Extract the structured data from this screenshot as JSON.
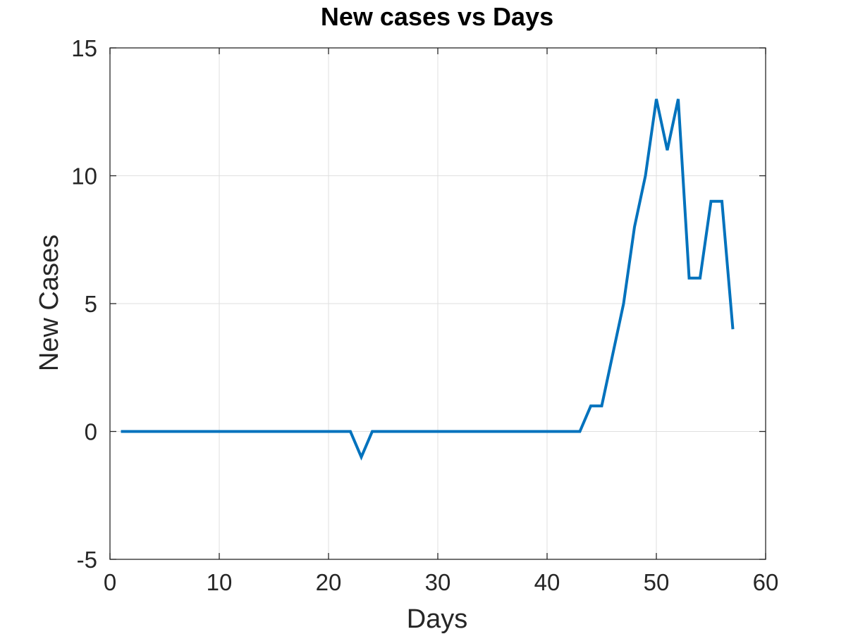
{
  "chart_data": {
    "type": "line",
    "title": "New cases vs Days",
    "xlabel": "Days",
    "ylabel": "New Cases",
    "xlim": [
      0,
      60
    ],
    "ylim": [
      -5,
      15
    ],
    "xticks": [
      0,
      10,
      20,
      30,
      40,
      50,
      60
    ],
    "yticks": [
      -5,
      0,
      5,
      10,
      15
    ],
    "xtick_labels": [
      "0",
      "10",
      "20",
      "30",
      "40",
      "50",
      "60"
    ],
    "ytick_labels": [
      "-5",
      "0",
      "5",
      "10",
      "15"
    ],
    "grid": true,
    "legend": "none",
    "series": [
      {
        "color": "#0072bd",
        "x": [
          1,
          2,
          3,
          4,
          5,
          6,
          7,
          8,
          9,
          10,
          11,
          12,
          13,
          14,
          15,
          16,
          17,
          18,
          19,
          20,
          21,
          22,
          23,
          24,
          25,
          26,
          27,
          28,
          29,
          30,
          31,
          32,
          33,
          34,
          35,
          36,
          37,
          38,
          39,
          40,
          41,
          42,
          43,
          44,
          45,
          46,
          47,
          48,
          49,
          50,
          51,
          52,
          53,
          54,
          55,
          56,
          57
        ],
        "y": [
          0,
          0,
          0,
          0,
          0,
          0,
          0,
          0,
          0,
          0,
          0,
          0,
          0,
          0,
          0,
          0,
          0,
          0,
          0,
          0,
          0,
          0,
          -1,
          0,
          0,
          0,
          0,
          0,
          0,
          0,
          0,
          0,
          0,
          0,
          0,
          0,
          0,
          0,
          0,
          0,
          0,
          0,
          0,
          1,
          1,
          3,
          5,
          8,
          10,
          13,
          11,
          13,
          6,
          6,
          9,
          9,
          4
        ]
      }
    ]
  },
  "colors": {
    "axes": "#262626",
    "grid": "#dfdfdf",
    "line": "#0072bd",
    "background": "#ffffff"
  }
}
